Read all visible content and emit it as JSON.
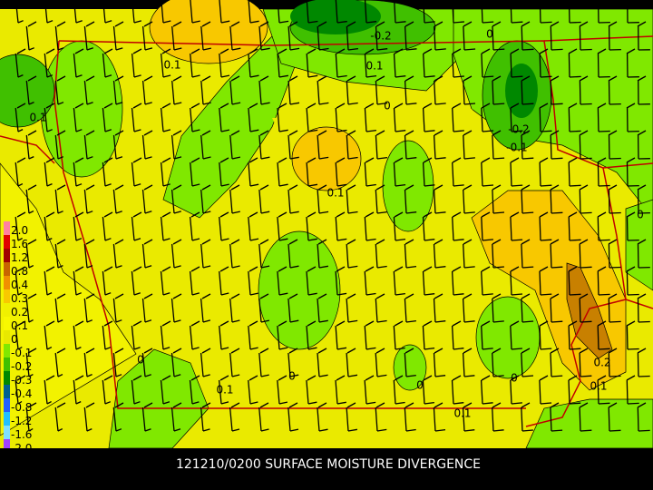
{
  "title": "121210/0200 SURFACE MOISTURE DIVERGENCE",
  "legend": {
    "labels": [
      "2.0",
      "1.6",
      "1.2",
      "0.8",
      "0.4",
      "0.3",
      "0.2",
      "0.1",
      "0",
      "-0.1",
      "-0.2",
      "-0.3",
      "-0.4",
      "-0.8",
      "-1.2",
      "-1.6",
      "-2.0"
    ]
  },
  "contour_labels": [
    "0.1",
    "-0.2",
    "0",
    "0.1",
    "0.1",
    "0",
    "-0.2",
    "-0.1",
    "0.1",
    "0",
    "0",
    "0.1",
    "0",
    "0",
    "0",
    "0.2",
    "0.1",
    "0.1"
  ]
}
